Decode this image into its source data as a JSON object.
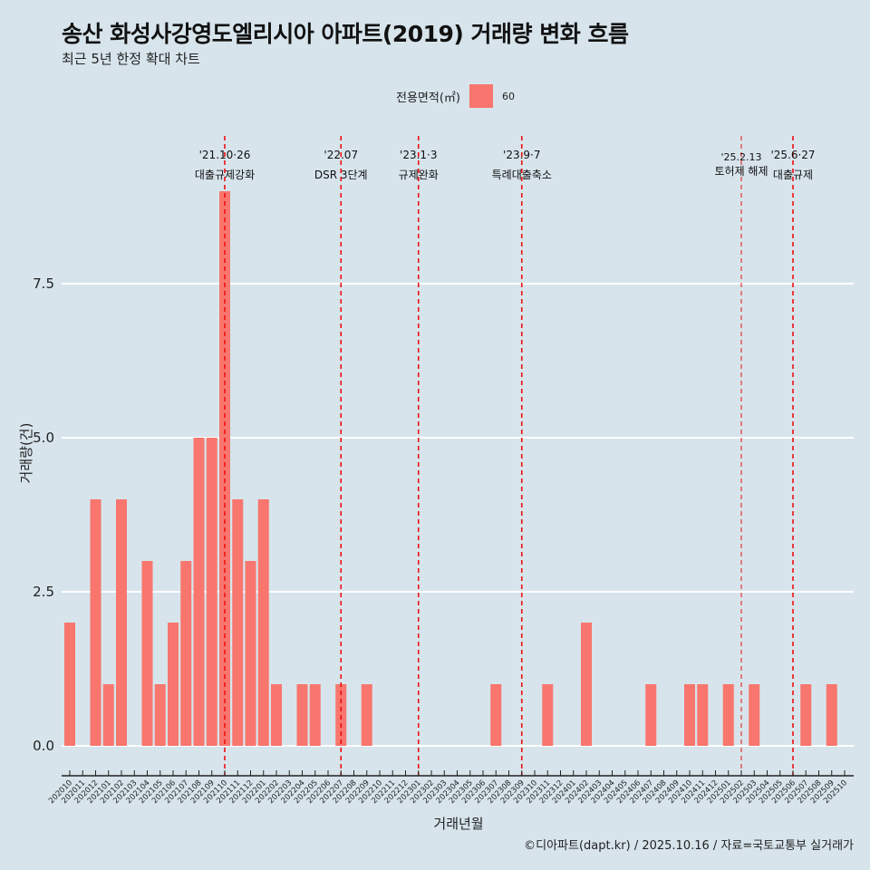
{
  "chart_data": {
    "type": "bar",
    "title": "송산 화성사강영도엘리시아 아파트(2019) 거래량 변화 흐름",
    "subtitle": "최근 5년 한정 확대 차트",
    "xlabel": "거래년월",
    "ylabel": "거래량(건)",
    "ylim": [
      -0.5,
      9.5
    ],
    "yticks": [
      0,
      2.5,
      5,
      7.5
    ],
    "ytick_labels": [
      "0.0",
      "2.5",
      "5.0",
      "7.5"
    ],
    "legend": {
      "title": "전용면적(㎡)",
      "entries": [
        "60"
      ],
      "placement": "top"
    },
    "categories": [
      "202010",
      "202011",
      "202012",
      "202101",
      "202102",
      "202103",
      "202104",
      "202105",
      "202106",
      "202107",
      "202108",
      "202109",
      "202110",
      "202111",
      "202112",
      "202201",
      "202202",
      "202203",
      "202204",
      "202205",
      "202206",
      "202207",
      "202208",
      "202209",
      "202210",
      "202211",
      "202212",
      "202301",
      "202302",
      "202303",
      "202304",
      "202305",
      "202306",
      "202307",
      "202308",
      "202309",
      "202310",
      "202311",
      "202312",
      "202401",
      "202402",
      "202403",
      "202404",
      "202405",
      "202406",
      "202407",
      "202408",
      "202409",
      "202410",
      "202411",
      "202412",
      "202501",
      "202502",
      "202503",
      "202504",
      "202505",
      "202506",
      "202507",
      "202508",
      "202509",
      "202510"
    ],
    "series": [
      {
        "name": "60",
        "color": "#f8766d",
        "values": [
          2,
          0,
          4,
          1,
          4,
          0,
          3,
          1,
          2,
          3,
          5,
          5,
          9,
          4,
          3,
          4,
          1,
          0,
          1,
          1,
          0,
          1,
          0,
          1,
          0,
          0,
          0,
          0,
          0,
          0,
          0,
          0,
          0,
          1,
          0,
          0,
          0,
          1,
          0,
          0,
          2,
          0,
          0,
          0,
          0,
          1,
          0,
          0,
          1,
          1,
          0,
          1,
          0,
          1,
          0,
          0,
          0,
          1,
          0,
          1,
          0
        ]
      }
    ],
    "annotations": [
      {
        "category": "202110",
        "date": "'21.10·26",
        "label": "대출규제강화",
        "thin": false
      },
      {
        "category": "202207",
        "date": "'22.07",
        "label": "DSR 3단계",
        "thin": false
      },
      {
        "category": "202301",
        "date": "'23.1·3",
        "label": "규제완화",
        "thin": false
      },
      {
        "category": "202309",
        "date": "'23.9·7",
        "label": "특례대출축소",
        "thin": false
      },
      {
        "category": "202502",
        "date": "'25.2.13",
        "label": "토허제 해제",
        "thin": true
      },
      {
        "category": "202506",
        "date": "'25.6·27",
        "label": "대출규제",
        "thin": false
      }
    ]
  },
  "caption": "©디아파트(dapt.kr) / 2025.10.16 / 자료=국토교통부 실거래가"
}
